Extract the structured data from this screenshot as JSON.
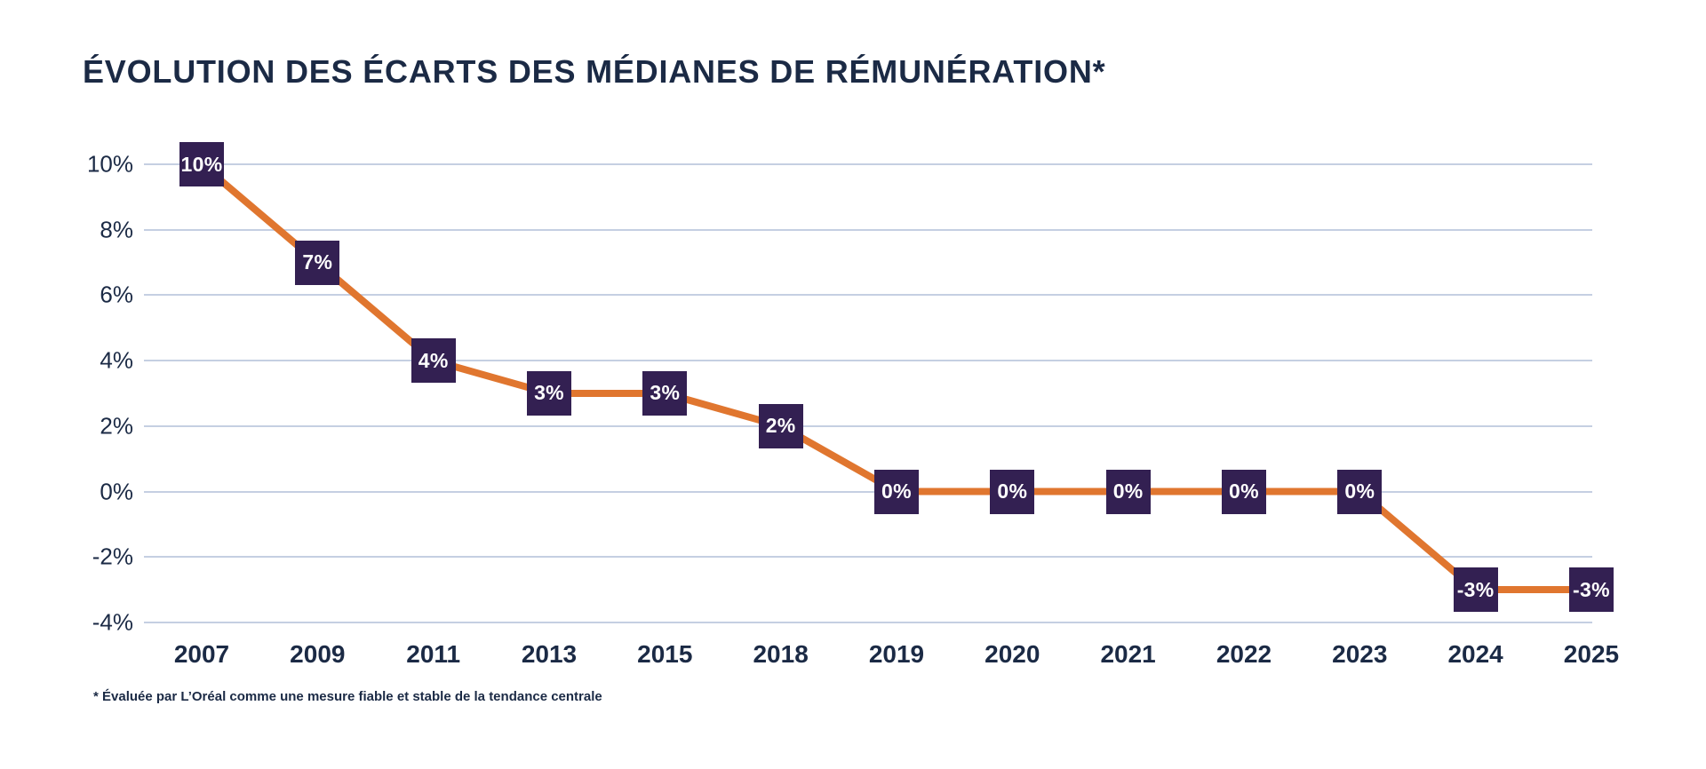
{
  "page": {
    "title": "ÉVOLUTION DES ÉCARTS DES MÉDIANES DE RÉMUNÉRATION*",
    "footnote": "* Évaluée par L’Oréal comme une mesure fiable et stable de la tendance centrale"
  },
  "colors": {
    "background": "#FFFFFF",
    "title_text": "#1B2A45",
    "axis_text": "#1B2A45",
    "gridline": "#C5CFE2",
    "line": "#E0762F",
    "label_box": "#332052",
    "label_text": "#FFFFFF"
  },
  "chart_data": {
    "type": "line",
    "title": "ÉVOLUTION DES ÉCARTS DES MÉDIANES DE RÉMUNÉRATION*",
    "footnote": "* Évaluée par L’Oréal comme une mesure fiable et stable de la tendance centrale",
    "categories": [
      "2007",
      "2009",
      "2011",
      "2013",
      "2015",
      "2018",
      "2019",
      "2020",
      "2021",
      "2022",
      "2023",
      "2024",
      "2025"
    ],
    "values": [
      10,
      7,
      4,
      3,
      3,
      2,
      0,
      0,
      0,
      0,
      0,
      -3,
      -3
    ],
    "point_labels": [
      "10%",
      "7%",
      "4%",
      "3%",
      "3%",
      "2%",
      "0%",
      "0%",
      "0%",
      "0%",
      "0%",
      "-3%",
      "-3%"
    ],
    "xlabel": "",
    "ylabel": "",
    "ytick_values": [
      10,
      8,
      6,
      4,
      2,
      0,
      -2,
      -4
    ],
    "ytick_labels": [
      "10%",
      "8%",
      "6%",
      "4%",
      "2%",
      "0%",
      "-2%",
      "-4%"
    ],
    "ylim": [
      -4.6,
      11.2
    ],
    "grid": "horizontal",
    "legend": "none",
    "line_color": "#E0762F",
    "label_box_color": "#332052",
    "label_text_color": "#FFFFFF"
  }
}
